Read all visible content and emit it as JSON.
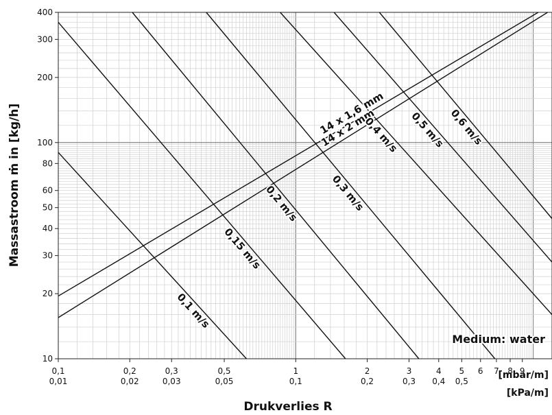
{
  "chart_data": {
    "type": "line",
    "x_scale": "log",
    "y_scale": "log",
    "xlim": [
      0.1,
      12
    ],
    "ylim": [
      10,
      400
    ],
    "grid": true,
    "xlabel": "Drukverlies R",
    "ylabel": "Massastroom ṁ in [kg/h]",
    "x_unit_primary": "[mbar/m]",
    "x_unit_secondary": "[kPa/m]",
    "x_ticks": [
      {
        "value": 0.1,
        "label": "0,1",
        "label2": "0,01"
      },
      {
        "value": 0.2,
        "label": "0,2",
        "label2": "0,02"
      },
      {
        "value": 0.3,
        "label": "0,3",
        "label2": "0,03"
      },
      {
        "value": 0.5,
        "label": "0,5",
        "label2": "0,05"
      },
      {
        "value": 1,
        "label": "1",
        "label2": "0,1"
      },
      {
        "value": 2,
        "label": "2",
        "label2": "0,2"
      },
      {
        "value": 3,
        "label": "3",
        "label2": "0,3"
      },
      {
        "value": 4,
        "label": "4",
        "label2": "0,4"
      },
      {
        "value": 5,
        "label": "5",
        "label2": "0,5"
      },
      {
        "value": 6,
        "label": "6",
        "label2": ""
      },
      {
        "value": 7,
        "label": "7",
        "label2": ""
      },
      {
        "value": 8,
        "label": "8",
        "label2": ""
      },
      {
        "value": 9,
        "label": "9",
        "label2": ""
      }
    ],
    "y_ticks": [
      {
        "value": 10,
        "label": "10"
      },
      {
        "value": 20,
        "label": "20"
      },
      {
        "value": 30,
        "label": "30"
      },
      {
        "value": 40,
        "label": "40"
      },
      {
        "value": 50,
        "label": "50"
      },
      {
        "value": 60,
        "label": "60"
      },
      {
        "value": 80,
        "label": "80"
      },
      {
        "value": 100,
        "label": "100"
      },
      {
        "value": 200,
        "label": "200"
      },
      {
        "value": 300,
        "label": "300"
      },
      {
        "value": 400,
        "label": "400"
      }
    ],
    "series": [
      {
        "name": "14 x 1,6 mm",
        "kind": "pipe",
        "points": [
          [
            0.1,
            19.5
          ],
          [
            10.5,
            400
          ]
        ]
      },
      {
        "name": "14 x 2 mm",
        "kind": "pipe",
        "points": [
          [
            0.1,
            15.5
          ],
          [
            11.5,
            400
          ]
        ]
      },
      {
        "name": "0,1 m/s",
        "kind": "velocity",
        "points": [
          [
            0.1,
            90
          ],
          [
            0.62,
            10
          ]
        ]
      },
      {
        "name": "0,15 m/s",
        "kind": "velocity",
        "points": [
          [
            0.1,
            360
          ],
          [
            1.62,
            10
          ]
        ]
      },
      {
        "name": "0,2 m/s",
        "kind": "velocity",
        "points": [
          [
            0.205,
            400
          ],
          [
            3.3,
            10
          ]
        ]
      },
      {
        "name": "0,3 m/s",
        "kind": "velocity",
        "points": [
          [
            0.42,
            400
          ],
          [
            6.9,
            10
          ]
        ]
      },
      {
        "name": "0,4 m/s",
        "kind": "velocity",
        "points": [
          [
            0.86,
            400
          ],
          [
            12,
            16
          ]
        ]
      },
      {
        "name": "0,5 m/s",
        "kind": "velocity",
        "points": [
          [
            1.45,
            400
          ],
          [
            12,
            28
          ]
        ]
      },
      {
        "name": "0,6 m/s",
        "kind": "velocity",
        "points": [
          [
            2.25,
            400
          ],
          [
            12,
            44.5
          ]
        ]
      }
    ],
    "annotations": [
      {
        "text": "Medium: water"
      }
    ]
  }
}
